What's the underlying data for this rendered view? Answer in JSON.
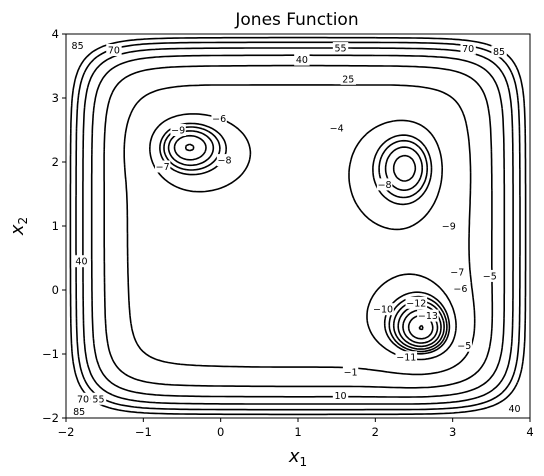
{
  "chart_data": {
    "type": "contour",
    "title": "Jones Function",
    "xlabel": {
      "base": "x",
      "sub": "1"
    },
    "ylabel": {
      "base": "x",
      "sub": "2"
    },
    "xlim": [
      -2,
      4
    ],
    "ylim": [
      -2,
      4
    ],
    "xticks": [
      -2,
      -1,
      0,
      1,
      2,
      3,
      4
    ],
    "yticks": [
      -2,
      -1,
      0,
      1,
      2,
      3,
      4
    ],
    "grid": false,
    "line_color": "#000000",
    "levels": [
      -13,
      -12,
      -11,
      -10,
      -9,
      -8,
      -7,
      -6,
      -5,
      -4,
      -1,
      10,
      25,
      40,
      55,
      70,
      85
    ],
    "minima": [
      {
        "x1": 2.65,
        "x2": -0.67,
        "value": -13.5
      },
      {
        "x1": 2.42,
        "x2": 1.93,
        "value": -8.9
      },
      {
        "x1": -0.45,
        "x2": 2.25,
        "value": -9.8
      }
    ],
    "contour_labels": [
      {
        "text": "85",
        "x1": -1.85,
        "x2": 3.82
      },
      {
        "text": "70",
        "x1": -1.38,
        "x2": 3.75
      },
      {
        "text": "55",
        "x1": 1.55,
        "x2": 3.78
      },
      {
        "text": "40",
        "x1": 1.05,
        "x2": 3.6
      },
      {
        "text": "25",
        "x1": 1.65,
        "x2": 3.3
      },
      {
        "text": "70",
        "x1": 3.2,
        "x2": 3.77
      },
      {
        "text": "85",
        "x1": 3.6,
        "x2": 3.73
      },
      {
        "text": "−9",
        "x1": -0.55,
        "x2": 2.5
      },
      {
        "text": "−6",
        "x1": -0.02,
        "x2": 2.68
      },
      {
        "text": "−7",
        "x1": -0.75,
        "x2": 1.93
      },
      {
        "text": "−8",
        "x1": 0.05,
        "x2": 2.03
      },
      {
        "text": "−4",
        "x1": 1.5,
        "x2": 2.53
      },
      {
        "text": "−8",
        "x1": 2.12,
        "x2": 1.65
      },
      {
        "text": "−9",
        "x1": 2.95,
        "x2": 1.0
      },
      {
        "text": "−7",
        "x1": 3.06,
        "x2": 0.28
      },
      {
        "text": "−6",
        "x1": 3.1,
        "x2": 0.02
      },
      {
        "text": "−5",
        "x1": 3.48,
        "x2": 0.22
      },
      {
        "text": "−12",
        "x1": 2.53,
        "x2": -0.2
      },
      {
        "text": "−10",
        "x1": 2.1,
        "x2": -0.3
      },
      {
        "text": "−13",
        "x1": 2.68,
        "x2": -0.4
      },
      {
        "text": "−11",
        "x1": 2.4,
        "x2": -1.05
      },
      {
        "text": "−5",
        "x1": 3.15,
        "x2": -0.87
      },
      {
        "text": "−1",
        "x1": 1.68,
        "x2": -1.28
      },
      {
        "text": "10",
        "x1": 1.55,
        "x2": -1.65
      },
      {
        "text": "40",
        "x1": -1.8,
        "x2": 0.45
      },
      {
        "text": "70",
        "x1": -1.78,
        "x2": -1.7
      },
      {
        "text": "55",
        "x1": -1.58,
        "x2": -1.7
      },
      {
        "text": "85",
        "x1": -1.83,
        "x2": -1.9
      },
      {
        "text": "40",
        "x1": 3.8,
        "x2": -1.85
      }
    ]
  }
}
